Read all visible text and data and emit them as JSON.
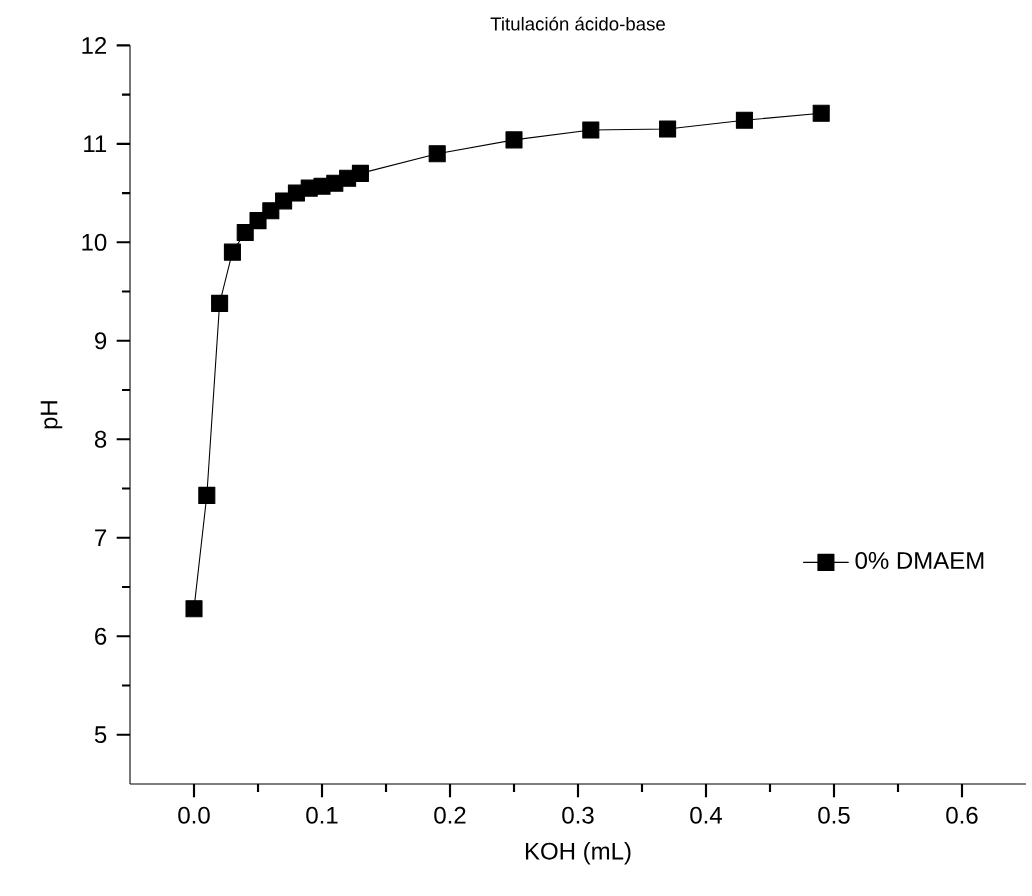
{
  "chart_data": {
    "type": "line",
    "title": "Titulación ácido-base",
    "xlabel": "KOH (mL)",
    "ylabel": "pH",
    "x": [
      0,
      0.01,
      0.02,
      0.03,
      0.04,
      0.05,
      0.06,
      0.07,
      0.08,
      0.09,
      0.1,
      0.11,
      0.12,
      0.13,
      0.19,
      0.25,
      0.31,
      0.37,
      0.43,
      0.49
    ],
    "series": [
      {
        "name": "0% DMAEM",
        "color": "#000000",
        "values": [
          6.28,
          7.43,
          9.38,
          9.9,
          10.1,
          10.22,
          10.32,
          10.42,
          10.5,
          10.55,
          10.57,
          10.6,
          10.65,
          10.7,
          10.9,
          11.04,
          11.14,
          11.15,
          11.24,
          11.31
        ]
      }
    ],
    "xlim": [
      -0.05,
      0.65
    ],
    "ylim": [
      4.5,
      12
    ],
    "xticks": [
      {
        "value": 0,
        "label": "0.0"
      },
      0.1,
      0.2,
      0.3,
      0.4,
      0.5,
      0.6
    ],
    "yticks": [
      5,
      6,
      7,
      8,
      9,
      10,
      11,
      12
    ],
    "marker": "square",
    "line_style": "solid",
    "legend": "right",
    "grid": false
  }
}
